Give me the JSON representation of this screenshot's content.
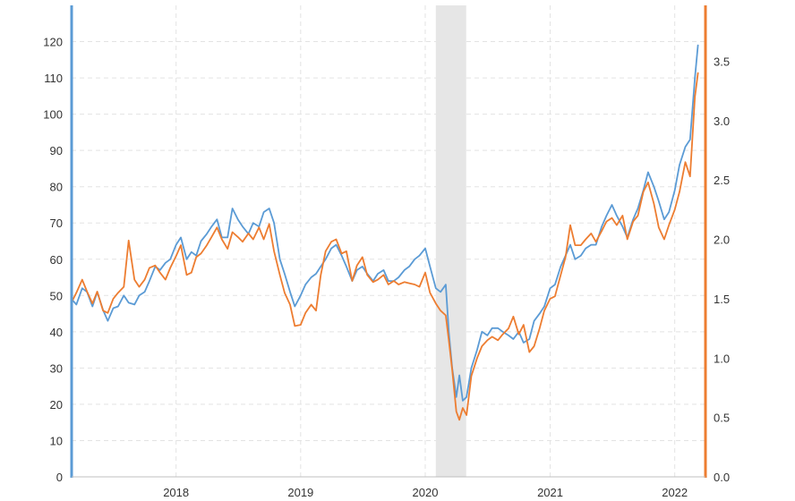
{
  "chart_data": {
    "type": "line",
    "title": "",
    "xlabel": "",
    "ylabel": "",
    "x_range": [
      "2017-03-01",
      "2022-04-01"
    ],
    "x_ticks": [
      "2018",
      "2019",
      "2020",
      "2021",
      "2022"
    ],
    "y_left": {
      "range": [
        0,
        130
      ],
      "ticks": [
        "0",
        "10",
        "20",
        "30",
        "40",
        "50",
        "60",
        "70",
        "80",
        "90",
        "100",
        "110",
        "120"
      ]
    },
    "y_right": {
      "range": [
        0,
        3.97
      ],
      "ticks": [
        "0.0",
        "0.5",
        "1.0",
        "1.5",
        "2.0",
        "2.5",
        "3.0",
        "3.5"
      ]
    },
    "grid": true,
    "recession_shading": {
      "start": "2020-02-01",
      "end": "2020-04-30",
      "color": "#e6e6e6"
    },
    "series": [
      {
        "axis": "left",
        "color": "#5b9bd5",
        "points": [
          [
            "2017-03-01",
            49
          ],
          [
            "2017-03-15",
            47.5
          ],
          [
            "2017-04-01",
            52
          ],
          [
            "2017-04-15",
            51
          ],
          [
            "2017-05-01",
            47
          ],
          [
            "2017-05-15",
            51
          ],
          [
            "2017-06-01",
            46
          ],
          [
            "2017-06-15",
            43
          ],
          [
            "2017-07-01",
            46.5
          ],
          [
            "2017-07-15",
            47
          ],
          [
            "2017-08-01",
            50
          ],
          [
            "2017-08-15",
            48
          ],
          [
            "2017-09-01",
            47.5
          ],
          [
            "2017-09-15",
            50
          ],
          [
            "2017-10-01",
            51
          ],
          [
            "2017-10-15",
            54
          ],
          [
            "2017-11-01",
            58
          ],
          [
            "2017-11-15",
            57
          ],
          [
            "2017-12-01",
            59
          ],
          [
            "2017-12-15",
            60
          ],
          [
            "2018-01-01",
            64
          ],
          [
            "2018-01-15",
            66
          ],
          [
            "2018-02-01",
            60
          ],
          [
            "2018-02-15",
            62
          ],
          [
            "2018-03-01",
            61
          ],
          [
            "2018-03-15",
            65
          ],
          [
            "2018-04-01",
            67
          ],
          [
            "2018-04-15",
            69
          ],
          [
            "2018-05-01",
            71
          ],
          [
            "2018-05-15",
            66
          ],
          [
            "2018-06-01",
            66
          ],
          [
            "2018-06-15",
            74
          ],
          [
            "2018-07-01",
            71
          ],
          [
            "2018-07-15",
            69
          ],
          [
            "2018-08-01",
            67
          ],
          [
            "2018-08-15",
            70
          ],
          [
            "2018-09-01",
            69
          ],
          [
            "2018-09-15",
            73
          ],
          [
            "2018-10-01",
            74
          ],
          [
            "2018-10-15",
            70
          ],
          [
            "2018-11-01",
            60
          ],
          [
            "2018-11-15",
            56
          ],
          [
            "2018-12-01",
            51
          ],
          [
            "2018-12-15",
            47
          ],
          [
            "2019-01-01",
            50
          ],
          [
            "2019-01-15",
            53
          ],
          [
            "2019-02-01",
            55
          ],
          [
            "2019-02-15",
            56
          ],
          [
            "2019-03-01",
            58
          ],
          [
            "2019-03-15",
            60
          ],
          [
            "2019-04-01",
            63
          ],
          [
            "2019-04-15",
            64
          ],
          [
            "2019-05-01",
            61
          ],
          [
            "2019-05-15",
            58
          ],
          [
            "2019-06-01",
            54
          ],
          [
            "2019-06-15",
            57
          ],
          [
            "2019-07-01",
            58
          ],
          [
            "2019-07-15",
            56
          ],
          [
            "2019-08-01",
            54
          ],
          [
            "2019-08-15",
            56
          ],
          [
            "2019-09-01",
            57
          ],
          [
            "2019-09-15",
            54
          ],
          [
            "2019-10-01",
            54
          ],
          [
            "2019-10-15",
            55
          ],
          [
            "2019-11-01",
            57
          ],
          [
            "2019-11-15",
            58
          ],
          [
            "2019-12-01",
            60
          ],
          [
            "2019-12-15",
            61
          ],
          [
            "2020-01-01",
            63
          ],
          [
            "2020-01-15",
            58
          ],
          [
            "2020-02-01",
            52
          ],
          [
            "2020-02-15",
            51
          ],
          [
            "2020-03-01",
            53
          ],
          [
            "2020-03-10",
            40
          ],
          [
            "2020-03-20",
            30
          ],
          [
            "2020-04-01",
            22
          ],
          [
            "2020-04-10",
            28
          ],
          [
            "2020-04-20",
            21
          ],
          [
            "2020-05-01",
            22
          ],
          [
            "2020-05-15",
            30
          ],
          [
            "2020-06-01",
            35
          ],
          [
            "2020-06-15",
            40
          ],
          [
            "2020-07-01",
            39
          ],
          [
            "2020-07-15",
            41
          ],
          [
            "2020-08-01",
            41
          ],
          [
            "2020-08-15",
            40
          ],
          [
            "2020-09-01",
            39
          ],
          [
            "2020-09-15",
            38
          ],
          [
            "2020-10-01",
            40
          ],
          [
            "2020-10-15",
            37
          ],
          [
            "2020-11-01",
            38
          ],
          [
            "2020-11-15",
            43
          ],
          [
            "2020-12-01",
            45
          ],
          [
            "2020-12-15",
            47
          ],
          [
            "2021-01-01",
            52
          ],
          [
            "2021-01-15",
            53
          ],
          [
            "2021-02-01",
            58
          ],
          [
            "2021-02-15",
            61
          ],
          [
            "2021-03-01",
            64
          ],
          [
            "2021-03-15",
            60
          ],
          [
            "2021-04-01",
            61
          ],
          [
            "2021-04-15",
            63
          ],
          [
            "2021-05-01",
            64
          ],
          [
            "2021-05-15",
            64
          ],
          [
            "2021-06-01",
            69
          ],
          [
            "2021-06-15",
            72
          ],
          [
            "2021-07-01",
            75
          ],
          [
            "2021-07-15",
            72
          ],
          [
            "2021-08-01",
            69
          ],
          [
            "2021-08-15",
            66
          ],
          [
            "2021-09-01",
            71
          ],
          [
            "2021-09-15",
            74
          ],
          [
            "2021-10-01",
            79
          ],
          [
            "2021-10-15",
            84
          ],
          [
            "2021-11-01",
            80
          ],
          [
            "2021-11-15",
            76
          ],
          [
            "2021-12-01",
            71
          ],
          [
            "2021-12-15",
            73
          ],
          [
            "2022-01-01",
            79
          ],
          [
            "2022-01-15",
            86
          ],
          [
            "2022-02-01",
            91
          ],
          [
            "2022-02-15",
            93
          ],
          [
            "2022-03-01",
            110
          ],
          [
            "2022-03-10",
            119
          ]
        ]
      },
      {
        "axis": "right",
        "color": "#ed7d31",
        "points": [
          [
            "2017-03-01",
            1.47
          ],
          [
            "2017-03-15",
            1.55
          ],
          [
            "2017-04-01",
            1.66
          ],
          [
            "2017-04-15",
            1.56
          ],
          [
            "2017-05-01",
            1.46
          ],
          [
            "2017-05-15",
            1.56
          ],
          [
            "2017-06-01",
            1.4
          ],
          [
            "2017-06-15",
            1.38
          ],
          [
            "2017-07-01",
            1.5
          ],
          [
            "2017-07-15",
            1.55
          ],
          [
            "2017-08-01",
            1.6
          ],
          [
            "2017-08-15",
            1.99
          ],
          [
            "2017-09-01",
            1.66
          ],
          [
            "2017-09-15",
            1.6
          ],
          [
            "2017-10-01",
            1.66
          ],
          [
            "2017-10-15",
            1.76
          ],
          [
            "2017-11-01",
            1.78
          ],
          [
            "2017-11-15",
            1.72
          ],
          [
            "2017-12-01",
            1.66
          ],
          [
            "2017-12-15",
            1.76
          ],
          [
            "2018-01-01",
            1.86
          ],
          [
            "2018-01-15",
            1.95
          ],
          [
            "2018-02-01",
            1.7
          ],
          [
            "2018-02-15",
            1.72
          ],
          [
            "2018-03-01",
            1.85
          ],
          [
            "2018-03-15",
            1.88
          ],
          [
            "2018-04-01",
            1.95
          ],
          [
            "2018-04-15",
            2.02
          ],
          [
            "2018-05-01",
            2.1
          ],
          [
            "2018-05-15",
            2.0
          ],
          [
            "2018-06-01",
            1.92
          ],
          [
            "2018-06-15",
            2.06
          ],
          [
            "2018-07-01",
            2.02
          ],
          [
            "2018-07-15",
            1.98
          ],
          [
            "2018-08-01",
            2.05
          ],
          [
            "2018-08-15",
            2.0
          ],
          [
            "2018-09-01",
            2.1
          ],
          [
            "2018-09-15",
            2.0
          ],
          [
            "2018-10-01",
            2.13
          ],
          [
            "2018-10-15",
            1.9
          ],
          [
            "2018-11-01",
            1.7
          ],
          [
            "2018-11-15",
            1.55
          ],
          [
            "2018-12-01",
            1.45
          ],
          [
            "2018-12-15",
            1.27
          ],
          [
            "2019-01-01",
            1.28
          ],
          [
            "2019-01-15",
            1.38
          ],
          [
            "2019-02-01",
            1.45
          ],
          [
            "2019-02-15",
            1.4
          ],
          [
            "2019-03-01",
            1.7
          ],
          [
            "2019-03-15",
            1.9
          ],
          [
            "2019-04-01",
            1.98
          ],
          [
            "2019-04-15",
            2.0
          ],
          [
            "2019-05-01",
            1.88
          ],
          [
            "2019-05-15",
            1.9
          ],
          [
            "2019-06-01",
            1.65
          ],
          [
            "2019-06-15",
            1.78
          ],
          [
            "2019-07-01",
            1.85
          ],
          [
            "2019-07-15",
            1.7
          ],
          [
            "2019-08-01",
            1.64
          ],
          [
            "2019-08-15",
            1.66
          ],
          [
            "2019-09-01",
            1.7
          ],
          [
            "2019-09-15",
            1.62
          ],
          [
            "2019-10-01",
            1.65
          ],
          [
            "2019-10-15",
            1.62
          ],
          [
            "2019-11-01",
            1.64
          ],
          [
            "2019-11-15",
            1.63
          ],
          [
            "2019-12-01",
            1.62
          ],
          [
            "2019-12-15",
            1.6
          ],
          [
            "2020-01-01",
            1.72
          ],
          [
            "2020-01-15",
            1.55
          ],
          [
            "2020-02-01",
            1.46
          ],
          [
            "2020-02-15",
            1.4
          ],
          [
            "2020-03-01",
            1.36
          ],
          [
            "2020-03-10",
            1.15
          ],
          [
            "2020-03-20",
            0.9
          ],
          [
            "2020-04-01",
            0.55
          ],
          [
            "2020-04-10",
            0.48
          ],
          [
            "2020-04-20",
            0.58
          ],
          [
            "2020-05-01",
            0.52
          ],
          [
            "2020-05-15",
            0.85
          ],
          [
            "2020-06-01",
            1.0
          ],
          [
            "2020-06-15",
            1.1
          ],
          [
            "2020-07-01",
            1.15
          ],
          [
            "2020-07-15",
            1.18
          ],
          [
            "2020-08-01",
            1.15
          ],
          [
            "2020-08-15",
            1.2
          ],
          [
            "2020-09-01",
            1.25
          ],
          [
            "2020-09-15",
            1.35
          ],
          [
            "2020-10-01",
            1.2
          ],
          [
            "2020-10-15",
            1.28
          ],
          [
            "2020-11-01",
            1.05
          ],
          [
            "2020-11-15",
            1.1
          ],
          [
            "2020-12-01",
            1.25
          ],
          [
            "2020-12-15",
            1.4
          ],
          [
            "2021-01-01",
            1.5
          ],
          [
            "2021-01-15",
            1.52
          ],
          [
            "2021-02-01",
            1.7
          ],
          [
            "2021-02-15",
            1.85
          ],
          [
            "2021-03-01",
            2.12
          ],
          [
            "2021-03-15",
            1.95
          ],
          [
            "2021-04-01",
            1.95
          ],
          [
            "2021-04-15",
            2.0
          ],
          [
            "2021-05-01",
            2.05
          ],
          [
            "2021-05-15",
            1.98
          ],
          [
            "2021-06-01",
            2.07
          ],
          [
            "2021-06-15",
            2.15
          ],
          [
            "2021-07-01",
            2.18
          ],
          [
            "2021-07-15",
            2.12
          ],
          [
            "2021-08-01",
            2.2
          ],
          [
            "2021-08-15",
            2.0
          ],
          [
            "2021-09-01",
            2.15
          ],
          [
            "2021-09-15",
            2.2
          ],
          [
            "2021-10-01",
            2.4
          ],
          [
            "2021-10-15",
            2.48
          ],
          [
            "2021-11-01",
            2.3
          ],
          [
            "2021-11-15",
            2.1
          ],
          [
            "2021-12-01",
            2.0
          ],
          [
            "2021-12-15",
            2.12
          ],
          [
            "2022-01-01",
            2.25
          ],
          [
            "2022-01-15",
            2.4
          ],
          [
            "2022-02-01",
            2.65
          ],
          [
            "2022-02-15",
            2.53
          ],
          [
            "2022-03-01",
            3.2
          ],
          [
            "2022-03-10",
            3.4
          ]
        ]
      }
    ]
  }
}
